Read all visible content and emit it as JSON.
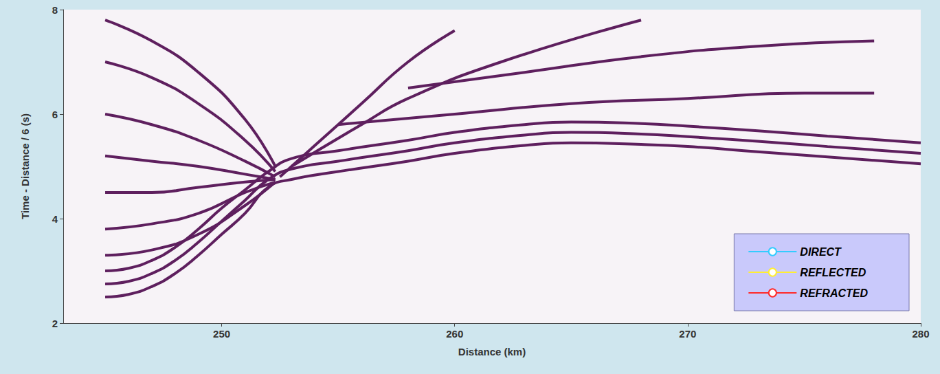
{
  "chart_data": {
    "type": "line",
    "x_label": "Distance (km)",
    "y_label": "Time - Distance / 6 (s)",
    "xlim": [
      243.2,
      280
    ],
    "ylim": [
      2,
      8
    ],
    "xticks": [
      250,
      260,
      270,
      280
    ],
    "yticks": [
      2,
      4,
      6,
      8
    ],
    "grid": false,
    "legend": "lower right",
    "color": "#5e1f5e",
    "events": [
      {
        "x": [
          245,
          246,
          247,
          248,
          249,
          250,
          251,
          252,
          253,
          255,
          258,
          260,
          263,
          265,
          268,
          270,
          273,
          276,
          280
        ],
        "y": [
          2.5,
          2.55,
          2.7,
          2.95,
          3.3,
          3.7,
          4.1,
          4.6,
          4.75,
          4.9,
          5.1,
          5.25,
          5.4,
          5.45,
          5.42,
          5.38,
          5.28,
          5.18,
          5.05
        ]
      },
      {
        "x": [
          245,
          246,
          247,
          248,
          249,
          250,
          251,
          252,
          253,
          255,
          258,
          260,
          263,
          265,
          268,
          270,
          273,
          276,
          280
        ],
        "y": [
          2.75,
          2.8,
          2.95,
          3.2,
          3.55,
          3.95,
          4.35,
          4.75,
          4.95,
          5.1,
          5.3,
          5.45,
          5.6,
          5.65,
          5.62,
          5.57,
          5.48,
          5.38,
          5.25
        ]
      },
      {
        "x": [
          245,
          246,
          247,
          248,
          249,
          250,
          251,
          252,
          253,
          255,
          258,
          260,
          263,
          265,
          268,
          270,
          273,
          276,
          280
        ],
        "y": [
          3.0,
          3.05,
          3.2,
          3.45,
          3.8,
          4.2,
          4.55,
          4.9,
          5.15,
          5.3,
          5.5,
          5.65,
          5.8,
          5.85,
          5.82,
          5.77,
          5.68,
          5.58,
          5.45
        ]
      },
      {
        "x": [
          245,
          247,
          249,
          251,
          252.3
        ],
        "y": [
          3.3,
          3.4,
          3.7,
          4.25,
          4.7
        ]
      },
      {
        "x": [
          245,
          247,
          249,
          251,
          252.3
        ],
        "y": [
          3.8,
          3.9,
          4.1,
          4.5,
          4.7
        ]
      },
      {
        "x": [
          245,
          247,
          249,
          251,
          252.3
        ],
        "y": [
          4.5,
          4.5,
          4.6,
          4.7,
          4.75
        ]
      },
      {
        "x": [
          245,
          247,
          249,
          251,
          252.3
        ],
        "y": [
          5.2,
          5.1,
          5.0,
          4.85,
          4.75
        ]
      },
      {
        "x": [
          245,
          247,
          249,
          251,
          252.3
        ],
        "y": [
          6.0,
          5.8,
          5.5,
          5.1,
          4.8
        ]
      },
      {
        "x": [
          245,
          247,
          249,
          251,
          252.3
        ],
        "y": [
          7.0,
          6.7,
          6.2,
          5.5,
          4.9
        ]
      },
      {
        "x": [
          245,
          247,
          249,
          251,
          252.3
        ],
        "y": [
          7.8,
          7.4,
          6.8,
          5.9,
          5.0
        ]
      },
      {
        "x": [
          252.5,
          254,
          256,
          258,
          260
        ],
        "y": [
          4.8,
          5.4,
          6.2,
          7.0,
          7.6
        ]
      },
      {
        "x": [
          253,
          256,
          258,
          262,
          268
        ],
        "y": [
          5.0,
          5.8,
          6.3,
          7.0,
          7.8
        ]
      },
      {
        "x": [
          255,
          260,
          265,
          270,
          275,
          278
        ],
        "y": [
          5.8,
          6.0,
          6.2,
          6.3,
          6.4,
          6.4
        ]
      },
      {
        "x": [
          258,
          263,
          268,
          273,
          278
        ],
        "y": [
          6.5,
          6.8,
          7.1,
          7.3,
          7.4
        ]
      }
    ],
    "series": [
      {
        "name": "DIRECT",
        "color": "#33ccff",
        "values": []
      },
      {
        "name": "REFLECTED",
        "color": "#ffee33",
        "values": []
      },
      {
        "name": "REFRACTED",
        "color": "#ff2a2a",
        "values": []
      }
    ]
  }
}
